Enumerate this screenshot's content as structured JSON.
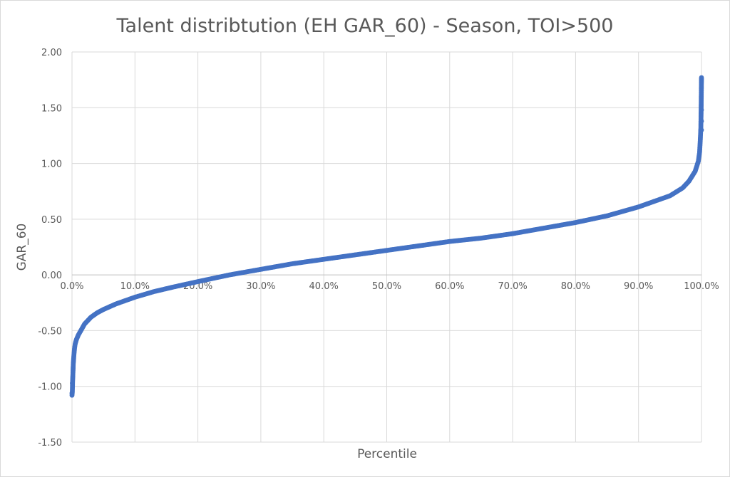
{
  "chart_data": {
    "type": "scatter",
    "title": "Talent distribtution (EH GAR_60) - Season, TOI>500",
    "xlabel": "Percentile",
    "ylabel": "GAR_60",
    "xlim": [
      0,
      1
    ],
    "ylim": [
      -1.5,
      2.0
    ],
    "x_ticks": [
      0,
      0.1,
      0.2,
      0.3,
      0.4,
      0.5,
      0.6,
      0.7,
      0.8,
      0.9,
      1.0
    ],
    "x_tick_labels": [
      "0.0%",
      "10.0%",
      "20.0%",
      "30.0%",
      "40.0%",
      "50.0%",
      "60.0%",
      "70.0%",
      "80.0%",
      "90.0%",
      "100.0%"
    ],
    "y_ticks": [
      2.0,
      1.5,
      1.0,
      0.5,
      0.0,
      -0.5,
      -1.0,
      -1.5
    ],
    "y_tick_labels": [
      "2.00",
      "1.50",
      "1.00",
      "0.50",
      "0.00",
      "-0.50",
      "-1.00",
      "-1.50"
    ],
    "grid": true,
    "legend": "none",
    "series_color": "#4472c4",
    "series": [
      {
        "x": [
          0.0,
          0.0005,
          0.001,
          0.0015,
          0.002,
          0.003,
          0.004,
          0.005,
          0.007,
          0.01,
          0.015,
          0.02,
          0.03,
          0.04,
          0.05,
          0.07,
          0.1,
          0.13,
          0.16,
          0.2,
          0.25,
          0.3,
          0.35,
          0.4,
          0.45,
          0.5,
          0.55,
          0.6,
          0.65,
          0.7,
          0.75,
          0.8,
          0.85,
          0.9,
          0.93,
          0.95,
          0.97,
          0.98,
          0.99,
          0.995,
          0.997,
          0.998,
          0.999,
          0.9995,
          1.0
        ],
        "y": [
          -1.08,
          -1.05,
          -0.95,
          -0.88,
          -0.8,
          -0.72,
          -0.66,
          -0.62,
          -0.58,
          -0.54,
          -0.49,
          -0.44,
          -0.38,
          -0.34,
          -0.31,
          -0.26,
          -0.2,
          -0.15,
          -0.11,
          -0.06,
          0.0,
          0.05,
          0.1,
          0.14,
          0.18,
          0.22,
          0.26,
          0.3,
          0.33,
          0.37,
          0.42,
          0.47,
          0.53,
          0.61,
          0.67,
          0.71,
          0.78,
          0.84,
          0.93,
          1.02,
          1.1,
          1.2,
          1.32,
          1.52,
          1.77
        ]
      }
    ]
  }
}
